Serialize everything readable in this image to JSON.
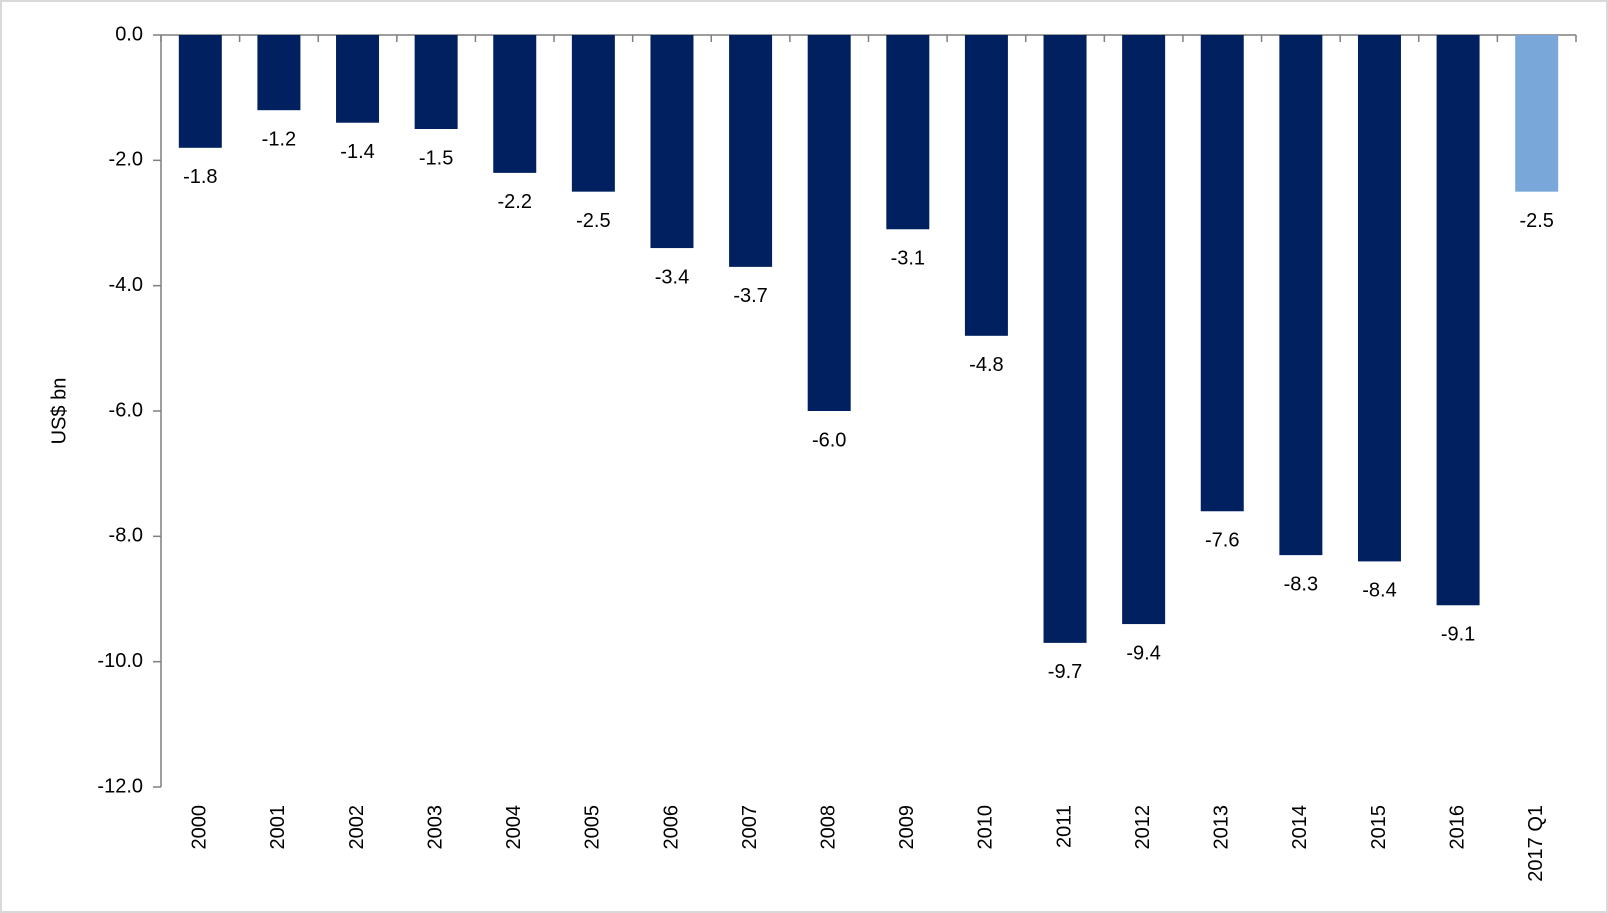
{
  "chart_data": {
    "type": "bar",
    "y_label": "US$ bn",
    "categories": [
      "2000",
      "2001",
      "2002",
      "2003",
      "2004",
      "2005",
      "2006",
      "2007",
      "2008",
      "2009",
      "2010",
      "2011",
      "2012",
      "2013",
      "2014",
      "2015",
      "2016",
      "2017 Q1"
    ],
    "values": [
      -1.8,
      -1.2,
      -1.4,
      -1.5,
      -2.2,
      -2.5,
      -3.4,
      -3.7,
      -6.0,
      -3.1,
      -4.8,
      -9.7,
      -9.4,
      -7.6,
      -8.3,
      -8.4,
      -9.1,
      -2.5
    ],
    "value_labels": [
      "-1.8",
      "-1.2",
      "-1.4",
      "-1.5",
      "-2.2",
      "-2.5",
      "-3.4",
      "-3.7",
      "-6.0",
      "-3.1",
      "-4.8",
      "-9.7",
      "-9.4",
      "-7.6",
      "-8.3",
      "-8.4",
      "-9.1",
      "-2.5"
    ],
    "colors": [
      "#002060",
      "#002060",
      "#002060",
      "#002060",
      "#002060",
      "#002060",
      "#002060",
      "#002060",
      "#002060",
      "#002060",
      "#002060",
      "#002060",
      "#002060",
      "#002060",
      "#002060",
      "#002060",
      "#002060",
      "#7aa7da"
    ],
    "ylim": [
      -12,
      0
    ],
    "yticks": [
      {
        "value": 0,
        "label": "0.0"
      },
      {
        "value": -2,
        "label": "-2.0"
      },
      {
        "value": -4,
        "label": "-4.0"
      },
      {
        "value": -6,
        "label": "-6.0"
      },
      {
        "value": -8,
        "label": "-8.0"
      },
      {
        "value": -10,
        "label": "-10.0"
      },
      {
        "value": -12,
        "label": "-12.0"
      }
    ],
    "grid": false
  }
}
